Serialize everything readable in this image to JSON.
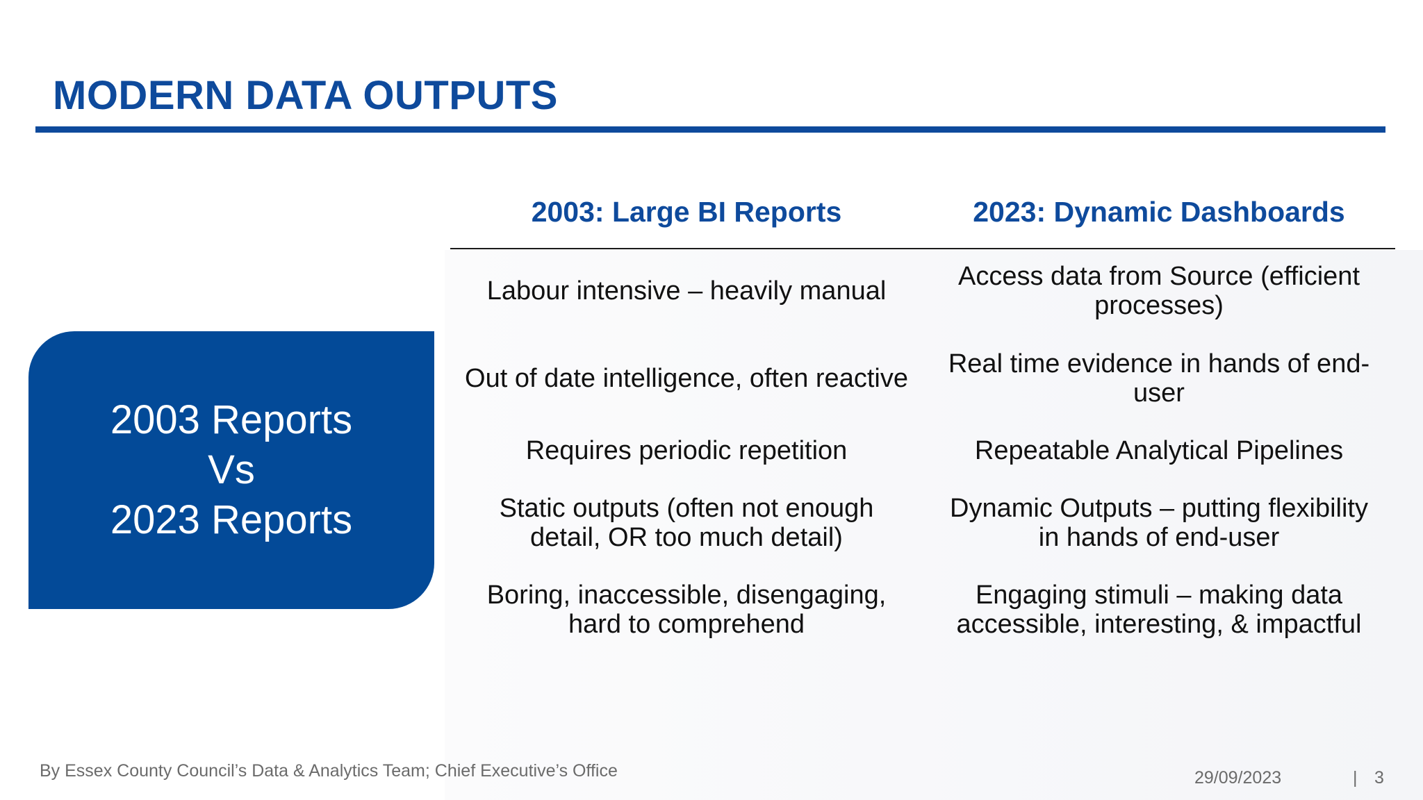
{
  "slide": {
    "title": "MODERN DATA OUTPUTS",
    "accent_color": "#0e4a9c",
    "callout": {
      "line1": "2003 Reports",
      "line2": "Vs",
      "line3": "2023 Reports",
      "background_color": "#034a98"
    },
    "table": {
      "headers": [
        "2003: Large BI Reports",
        "2023: Dynamic Dashboards"
      ],
      "rows": [
        [
          "Labour intensive – heavily manual",
          "Access data from Source (efficient processes)"
        ],
        [
          "Out of date intelligence, often reactive",
          "Real time evidence in hands of end-user"
        ],
        [
          "Requires periodic repetition",
          "Repeatable Analytical Pipelines"
        ],
        [
          "Static outputs (often not enough detail, OR too much detail)",
          "Dynamic Outputs – putting flexibility in hands of end-user"
        ],
        [
          "Boring, inaccessible, disengaging, hard to comprehend",
          "Engaging stimuli – making data accessible, interesting, & impactful"
        ]
      ]
    },
    "footer": {
      "credit": "By Essex County Council’s Data & Analytics Team; Chief Executive’s Office",
      "date": "29/09/2023",
      "separator": "|",
      "page_number": "3"
    }
  }
}
